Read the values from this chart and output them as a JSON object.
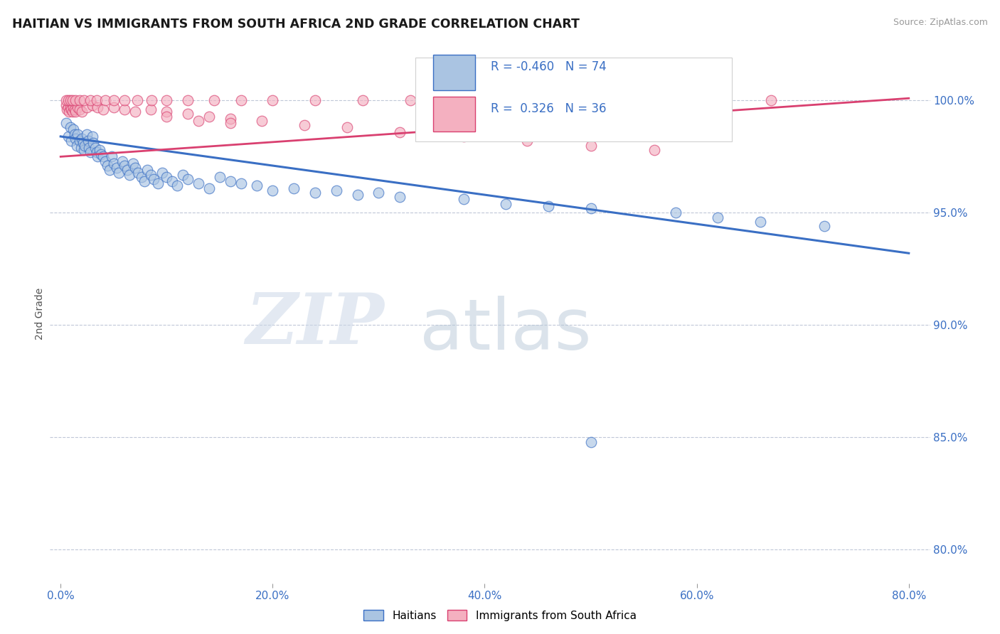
{
  "title": "HAITIAN VS IMMIGRANTS FROM SOUTH AFRICA 2ND GRADE CORRELATION CHART",
  "source": "Source: ZipAtlas.com",
  "ylabel": "2nd Grade",
  "xlabel_ticks": [
    "0.0%",
    "20.0%",
    "40.0%",
    "60.0%",
    "80.0%"
  ],
  "xlabel_vals": [
    0.0,
    0.2,
    0.4,
    0.6,
    0.8
  ],
  "ylabel_ticks": [
    "80.0%",
    "85.0%",
    "90.0%",
    "95.0%",
    "100.0%"
  ],
  "ylabel_vals": [
    0.8,
    0.85,
    0.9,
    0.95,
    1.0
  ],
  "xlim": [
    -0.01,
    0.82
  ],
  "ylim": [
    0.785,
    1.025
  ],
  "blue_R": -0.46,
  "blue_N": 74,
  "pink_R": 0.326,
  "pink_N": 36,
  "blue_color": "#aac4e2",
  "blue_line_color": "#3a6fc4",
  "pink_color": "#f4b0c0",
  "pink_line_color": "#d94070",
  "legend_label_blue": "Haitians",
  "legend_label_pink": "Immigrants from South Africa",
  "watermark_zip": "ZIP",
  "watermark_atlas": "atlas",
  "blue_scatter_x": [
    0.005,
    0.007,
    0.009,
    0.01,
    0.012,
    0.013,
    0.014,
    0.015,
    0.016,
    0.018,
    0.019,
    0.02,
    0.021,
    0.022,
    0.023,
    0.025,
    0.026,
    0.027,
    0.028,
    0.03,
    0.031,
    0.033,
    0.034,
    0.035,
    0.037,
    0.038,
    0.04,
    0.042,
    0.044,
    0.046,
    0.048,
    0.05,
    0.053,
    0.055,
    0.058,
    0.06,
    0.063,
    0.065,
    0.068,
    0.07,
    0.073,
    0.076,
    0.079,
    0.082,
    0.085,
    0.088,
    0.092,
    0.096,
    0.1,
    0.105,
    0.11,
    0.115,
    0.12,
    0.13,
    0.14,
    0.15,
    0.16,
    0.17,
    0.185,
    0.2,
    0.22,
    0.24,
    0.26,
    0.28,
    0.3,
    0.32,
    0.38,
    0.42,
    0.46,
    0.5,
    0.58,
    0.62,
    0.66,
    0.72
  ],
  "blue_scatter_y": [
    0.99,
    0.984,
    0.988,
    0.982,
    0.987,
    0.985,
    0.983,
    0.98,
    0.985,
    0.982,
    0.979,
    0.983,
    0.981,
    0.978,
    0.98,
    0.985,
    0.982,
    0.979,
    0.977,
    0.984,
    0.981,
    0.979,
    0.977,
    0.975,
    0.978,
    0.976,
    0.975,
    0.973,
    0.971,
    0.969,
    0.975,
    0.972,
    0.97,
    0.968,
    0.973,
    0.971,
    0.969,
    0.967,
    0.972,
    0.97,
    0.968,
    0.966,
    0.964,
    0.969,
    0.967,
    0.965,
    0.963,
    0.968,
    0.966,
    0.964,
    0.962,
    0.967,
    0.965,
    0.963,
    0.961,
    0.966,
    0.964,
    0.963,
    0.962,
    0.96,
    0.961,
    0.959,
    0.96,
    0.958,
    0.959,
    0.957,
    0.956,
    0.954,
    0.953,
    0.952,
    0.95,
    0.948,
    0.946,
    0.944
  ],
  "blue_scatter_outlier_x": [
    0.5
  ],
  "blue_scatter_outlier_y": [
    0.848
  ],
  "pink_scatter_x": [
    0.005,
    0.006,
    0.007,
    0.008,
    0.009,
    0.01,
    0.011,
    0.012,
    0.013,
    0.014,
    0.016,
    0.018,
    0.02,
    0.025,
    0.03,
    0.035,
    0.04,
    0.05,
    0.06,
    0.07,
    0.085,
    0.1,
    0.12,
    0.14,
    0.16,
    0.19,
    0.23,
    0.27,
    0.32,
    0.38,
    0.44,
    0.5,
    0.56,
    0.16,
    0.13,
    0.1
  ],
  "pink_scatter_y": [
    0.998,
    0.996,
    0.997,
    0.995,
    0.997,
    0.996,
    0.995,
    0.997,
    0.996,
    0.995,
    0.997,
    0.996,
    0.995,
    0.997,
    0.998,
    0.997,
    0.996,
    0.997,
    0.996,
    0.995,
    0.996,
    0.995,
    0.994,
    0.993,
    0.992,
    0.991,
    0.989,
    0.988,
    0.986,
    0.984,
    0.982,
    0.98,
    0.978,
    0.99,
    0.991,
    0.993
  ],
  "pink_scatter_top_x": [
    0.005,
    0.007,
    0.009,
    0.011,
    0.014,
    0.018,
    0.022,
    0.028,
    0.034,
    0.042,
    0.05,
    0.06,
    0.072,
    0.086,
    0.1,
    0.12,
    0.145,
    0.17,
    0.2,
    0.24,
    0.285,
    0.33,
    0.38,
    0.43,
    0.49,
    0.55,
    0.61,
    0.67
  ],
  "pink_scatter_top_y": [
    1.0,
    1.0,
    1.0,
    1.0,
    1.0,
    1.0,
    1.0,
    1.0,
    1.0,
    1.0,
    1.0,
    1.0,
    1.0,
    1.0,
    1.0,
    1.0,
    1.0,
    1.0,
    1.0,
    1.0,
    1.0,
    1.0,
    1.0,
    1.0,
    1.0,
    1.0,
    1.0,
    1.0
  ],
  "blue_line_x": [
    0.0,
    0.8
  ],
  "blue_line_y": [
    0.984,
    0.932
  ],
  "pink_line_x": [
    0.0,
    0.8
  ],
  "pink_line_y": [
    0.975,
    1.001
  ]
}
